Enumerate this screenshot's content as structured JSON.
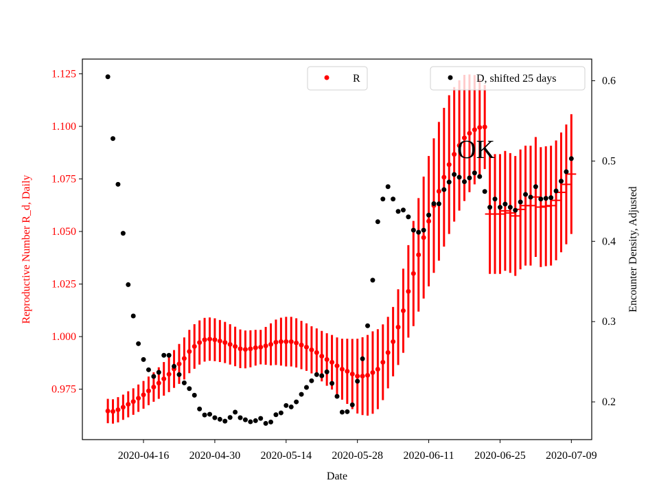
{
  "chart_data": {
    "type": "scatter",
    "xlabel": "Date",
    "ylabel_left": "Reproductive Number R_d, Daily",
    "ylabel_right": "Encounter Density, Adjusted",
    "left_axis_color": "#ff0000",
    "right_axis_color": "#000000",
    "x_start_date": "2020-04-09",
    "x_range_dates": [
      "2020-04-04",
      "2020-07-13"
    ],
    "x_ticks": [
      "2020-04-16",
      "2020-04-30",
      "2020-05-14",
      "2020-05-28",
      "2020-06-11",
      "2020-06-25",
      "2020-07-09"
    ],
    "ylim_left": [
      0.951,
      1.132
    ],
    "y_ticks_left": [
      "0.975",
      "1.000",
      "1.025",
      "1.050",
      "1.075",
      "1.100",
      "1.125"
    ],
    "ylim_right": [
      0.153,
      0.627
    ],
    "y_ticks_right": [
      "0.2",
      "0.3",
      "0.4",
      "0.5",
      "0.6"
    ],
    "grid": false,
    "annotation": "OK",
    "series": [
      {
        "name": "R",
        "axis": "left",
        "color": "#ff0000",
        "marker_change_after_index": 74,
        "values": [
          0.9646,
          0.9644,
          0.9652,
          0.9664,
          0.9678,
          0.9691,
          0.9707,
          0.9723,
          0.9742,
          0.976,
          0.9779,
          0.9799,
          0.9821,
          0.9846,
          0.987,
          0.9896,
          0.9929,
          0.9953,
          0.9972,
          0.9985,
          0.9988,
          0.9985,
          0.9979,
          0.9972,
          0.9963,
          0.9953,
          0.9942,
          0.9939,
          0.9942,
          0.9947,
          0.995,
          0.9956,
          0.9963,
          0.9973,
          0.9976,
          0.9976,
          0.9976,
          0.997,
          0.996,
          0.995,
          0.9937,
          0.9924,
          0.9907,
          0.9891,
          0.9878,
          0.9861,
          0.9845,
          0.9835,
          0.9822,
          0.9812,
          0.9812,
          0.9816,
          0.9829,
          0.9845,
          0.9878,
          0.9924,
          0.9976,
          1.0045,
          1.0123,
          1.0215,
          1.03,
          1.0389,
          1.0471,
          1.0549,
          1.0623,
          1.0691,
          1.0758,
          1.0818,
          1.0867,
          1.0909,
          1.0945,
          1.0967,
          1.0984,
          1.0995,
          1.0997,
          1.0583,
          1.0583,
          1.0583,
          1.0598,
          1.0588,
          1.0574,
          1.0605,
          1.0623,
          1.0623,
          1.0664,
          1.0616,
          1.062,
          1.0623,
          1.0648,
          1.0686,
          1.0724,
          1.0773
        ],
        "errors": [
          0.0058,
          0.0058,
          0.006,
          0.006,
          0.0062,
          0.0063,
          0.0065,
          0.0066,
          0.0068,
          0.007,
          0.0075,
          0.008,
          0.0085,
          0.009,
          0.0095,
          0.01,
          0.0103,
          0.0106,
          0.0105,
          0.0104,
          0.0103,
          0.0102,
          0.01,
          0.0098,
          0.0096,
          0.0094,
          0.0092,
          0.009,
          0.0088,
          0.0085,
          0.0082,
          0.009,
          0.01,
          0.0108,
          0.0114,
          0.0118,
          0.0118,
          0.0117,
          0.0115,
          0.0113,
          0.0112,
          0.0115,
          0.012,
          0.0125,
          0.013,
          0.0135,
          0.0145,
          0.0155,
          0.0167,
          0.0178,
          0.0185,
          0.0192,
          0.0196,
          0.019,
          0.018,
          0.017,
          0.0165,
          0.018,
          0.02,
          0.022,
          0.025,
          0.027,
          0.029,
          0.031,
          0.032,
          0.033,
          0.033,
          0.033,
          0.032,
          0.031,
          0.03,
          0.028,
          0.026,
          0.023,
          0.02,
          0.0285,
          0.0285,
          0.0285,
          0.0285,
          0.0285,
          0.0285,
          0.0285,
          0.0285,
          0.0285,
          0.0285,
          0.0285,
          0.0285,
          0.0285,
          0.0285,
          0.0285,
          0.0285,
          0.0285
        ]
      },
      {
        "name": "D, shifted 25 days",
        "axis": "right",
        "color": "#000000",
        "values": [
          0.605,
          0.528,
          0.471,
          0.41,
          0.346,
          0.307,
          0.2725,
          0.2528,
          0.24,
          0.2317,
          0.2368,
          0.258,
          0.258,
          0.2443,
          0.234,
          0.2237,
          0.2165,
          0.2083,
          0.1912,
          0.1837,
          0.1846,
          0.1803,
          0.1783,
          0.176,
          0.1806,
          0.1872,
          0.1803,
          0.1777,
          0.1752,
          0.1766,
          0.1794,
          0.1732,
          0.1749,
          0.184,
          0.1863,
          0.1955,
          0.1937,
          0.2,
          0.2094,
          0.218,
          0.2263,
          0.234,
          0.2326,
          0.2374,
          0.2231,
          0.2069,
          0.1872,
          0.1878,
          0.1963,
          0.2257,
          0.2537,
          0.2948,
          0.3516,
          0.4244,
          0.4527,
          0.4681,
          0.4527,
          0.4373,
          0.439,
          0.4304,
          0.4139,
          0.4113,
          0.4139,
          0.4327,
          0.4469,
          0.4467,
          0.4644,
          0.4738,
          0.4833,
          0.4798,
          0.4743,
          0.479,
          0.4852,
          0.4807,
          0.4621,
          0.4424,
          0.4527,
          0.4424,
          0.4464,
          0.4424,
          0.4387,
          0.449,
          0.4584,
          0.455,
          0.4681,
          0.4527,
          0.4535,
          0.4544,
          0.4627,
          0.4749,
          0.4867,
          0.503
        ]
      }
    ],
    "legends": [
      {
        "label": "R",
        "color": "#ff0000",
        "placement": "top-center"
      },
      {
        "label": "D, shifted 25 days",
        "color": "#000000",
        "placement": "top-right"
      }
    ]
  }
}
